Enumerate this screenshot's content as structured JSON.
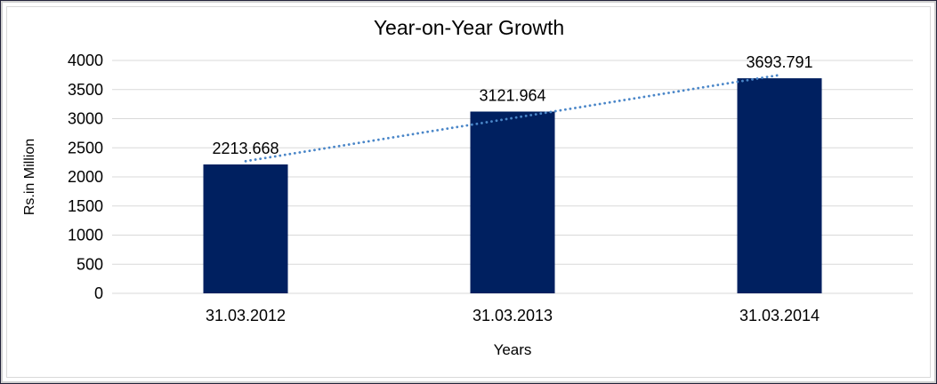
{
  "chart_data": {
    "type": "bar",
    "title": "Year-on-Year Growth",
    "xlabel": "Years",
    "ylabel": "Rs.in Million",
    "categories": [
      "31.03.2012",
      "31.03.2013",
      "31.03.2014"
    ],
    "values": [
      2213.668,
      3121.964,
      3693.791
    ],
    "data_labels": [
      "2213.668",
      "3121.964",
      "3693.791"
    ],
    "ytick_labels": [
      "0",
      "500",
      "1000",
      "1500",
      "2000",
      "2500",
      "3000",
      "3500",
      "4000"
    ],
    "yticks": [
      0,
      500,
      1000,
      1500,
      2000,
      2500,
      3000,
      3500,
      4000
    ],
    "ylim": [
      0,
      4000
    ],
    "grid": true,
    "legend_position": "none",
    "trendline": {
      "type": "linear",
      "style": "dotted"
    },
    "colors": {
      "bar": "#002060",
      "trendline": "#4a86c8",
      "gridline": "#d9d9d9",
      "axis_line": "#d9d9d9",
      "label_text": "#000000",
      "title_text": "#000000",
      "chart_background": "#ffffff"
    }
  }
}
